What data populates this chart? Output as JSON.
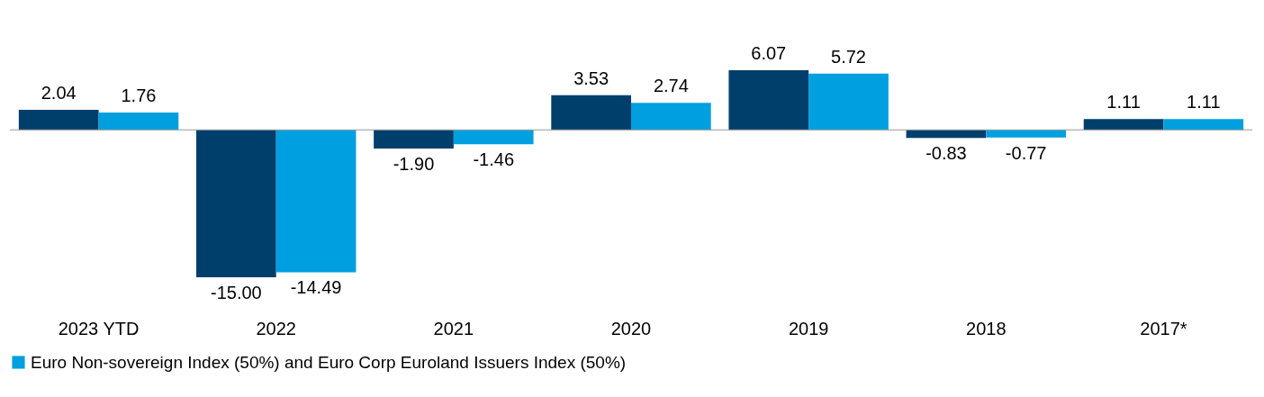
{
  "chart_data": {
    "type": "bar",
    "categories": [
      "2023 YTD",
      "2022",
      "2021",
      "2020",
      "2019",
      "2018",
      "2017*"
    ],
    "series": [
      {
        "color": "#003f6b",
        "values": [
          2.04,
          -15.0,
          -1.9,
          3.53,
          6.07,
          -0.83,
          1.11
        ],
        "value_labels": [
          "2.04",
          "-15.00",
          "-1.90",
          "3.53",
          "6.07",
          "-0.83",
          "1.11"
        ]
      },
      {
        "name": "Euro Non-sovereign Index (50%) and Euro Corp Euroland Issuers Index (50%)",
        "color": "#009fdf",
        "values": [
          1.76,
          -14.49,
          -1.46,
          2.74,
          5.72,
          -0.77,
          1.11
        ],
        "value_labels": [
          "1.76",
          "-14.49",
          "-1.46",
          "2.74",
          "5.72",
          "-0.77",
          "1.11"
        ]
      }
    ],
    "legend": "bottom left"
  }
}
